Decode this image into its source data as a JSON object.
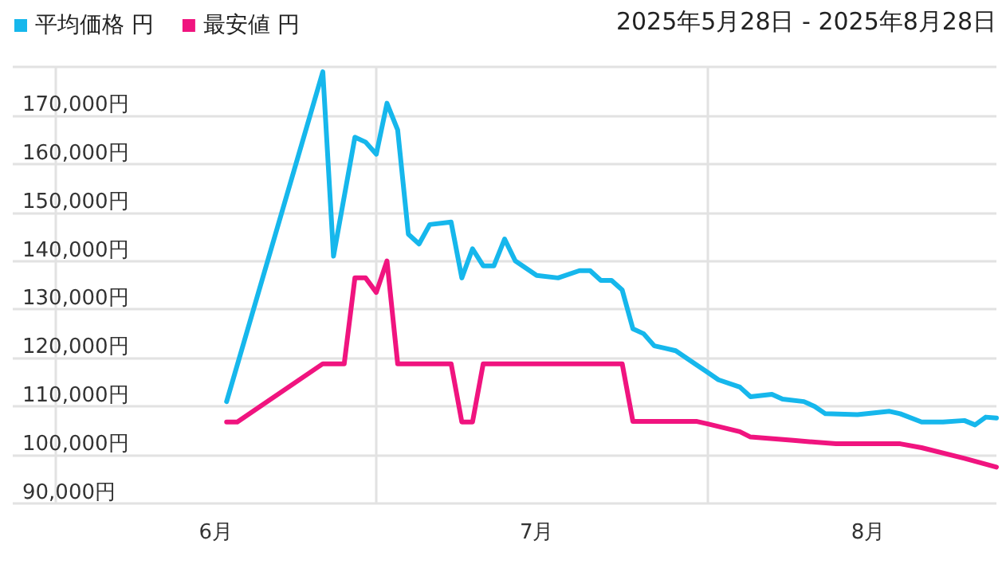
{
  "chart_data": {
    "type": "line",
    "annotations": [
      "2025年5月28日 - 2025年8月28日"
    ],
    "xlim": [
      "2025-05-28",
      "2025-08-28"
    ],
    "xticks": [
      {
        "value": "2025-06-01",
        "label": null
      },
      {
        "value": "2025-06-16",
        "label": "6月"
      },
      {
        "value": "2025-07-01",
        "label": null
      },
      {
        "value": "2025-07-16",
        "label": "7月"
      },
      {
        "value": "2025-08-01",
        "label": null
      },
      {
        "value": "2025-08-16",
        "label": "8月"
      }
    ],
    "ylim": [
      90000,
      180000
    ],
    "yticks": [
      {
        "value": 90000,
        "label": "90,000円"
      },
      {
        "value": 100000,
        "label": "100,000円"
      },
      {
        "value": 110000,
        "label": "110,000円"
      },
      {
        "value": 120000,
        "label": "120,000円"
      },
      {
        "value": 130000,
        "label": "130,000円"
      },
      {
        "value": 140000,
        "label": "140,000円"
      },
      {
        "value": 150000,
        "label": "150,000円"
      },
      {
        "value": 160000,
        "label": "160,000円"
      },
      {
        "value": 170000,
        "label": "170,000円"
      },
      {
        "value": 180000,
        "label": null
      }
    ],
    "grid": true,
    "legend": "top left",
    "marker": "none",
    "line_style": "solid",
    "series": [
      {
        "name": "平均価格 円",
        "color": "#16b7ec",
        "x": [
          "2025-06-17",
          "2025-06-26",
          "2025-06-27",
          "2025-06-29",
          "2025-06-30",
          "2025-07-01",
          "2025-07-02",
          "2025-07-03",
          "2025-07-04",
          "2025-07-05",
          "2025-07-06",
          "2025-07-08",
          "2025-07-09",
          "2025-07-10",
          "2025-07-11",
          "2025-07-12",
          "2025-07-13",
          "2025-07-14",
          "2025-07-16",
          "2025-07-18",
          "2025-07-20",
          "2025-07-21",
          "2025-07-22",
          "2025-07-23",
          "2025-07-24",
          "2025-07-25",
          "2025-07-26",
          "2025-07-27",
          "2025-07-28",
          "2025-07-29",
          "2025-07-31",
          "2025-08-01",
          "2025-08-02",
          "2025-08-04",
          "2025-08-05",
          "2025-08-07",
          "2025-08-08",
          "2025-08-10",
          "2025-08-11",
          "2025-08-12",
          "2025-08-15",
          "2025-08-18",
          "2025-08-19",
          "2025-08-21",
          "2025-08-23",
          "2025-08-25",
          "2025-08-26",
          "2025-08-27",
          "2025-08-28"
        ],
        "values": [
          111000,
          179000,
          141000,
          165500,
          164500,
          162000,
          172500,
          167000,
          145500,
          143500,
          147500,
          148000,
          136500,
          142500,
          139000,
          139000,
          144500,
          140000,
          137000,
          136500,
          138000,
          138000,
          136000,
          136000,
          134000,
          126000,
          125000,
          122500,
          122000,
          121500,
          118500,
          117000,
          115500,
          114000,
          112000,
          112500,
          111500,
          111000,
          110000,
          108500,
          108300,
          109000,
          108500,
          106800,
          106800,
          107100,
          106200,
          107800,
          107600
        ]
      },
      {
        "name": "最安値 円",
        "color": "#f0147f",
        "x": [
          "2025-06-17",
          "2025-06-18",
          "2025-06-26",
          "2025-06-28",
          "2025-06-29",
          "2025-06-30",
          "2025-07-01",
          "2025-07-02",
          "2025-07-03",
          "2025-07-08",
          "2025-07-09",
          "2025-07-10",
          "2025-07-11",
          "2025-07-24",
          "2025-07-25",
          "2025-07-31",
          "2025-08-01",
          "2025-08-04",
          "2025-08-05",
          "2025-08-09",
          "2025-08-13",
          "2025-08-19",
          "2025-08-21",
          "2025-08-25",
          "2025-08-28"
        ],
        "values": [
          106800,
          106800,
          118800,
          118800,
          136500,
          136500,
          133500,
          140000,
          118800,
          118800,
          106800,
          106800,
          118800,
          118800,
          106900,
          106900,
          106400,
          104800,
          103700,
          103000,
          102300,
          102300,
          101500,
          99300,
          97500
        ]
      }
    ]
  }
}
